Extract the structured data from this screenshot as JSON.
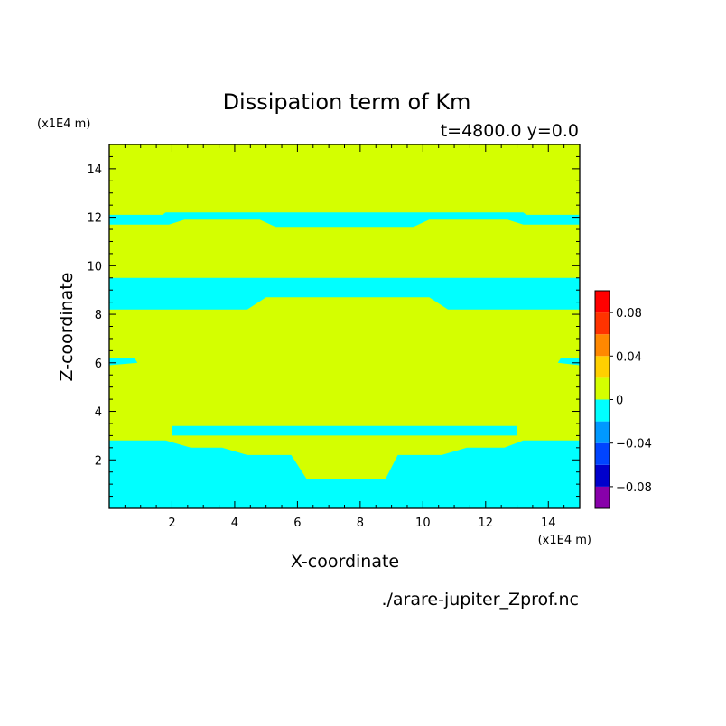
{
  "chart_data": {
    "type": "heatmap",
    "title": "Dissipation term of Km",
    "subtitle": "t=4800.0 y=0.0",
    "xlabel": "X-coordinate",
    "ylabel": "Z-coordinate",
    "x_unit": "(x1E4 m)",
    "y_unit": "(x1E4 m)",
    "xlim": [
      0,
      15
    ],
    "ylim": [
      0,
      15
    ],
    "xticks": [
      2,
      4,
      6,
      8,
      10,
      12,
      14
    ],
    "yticks": [
      2,
      4,
      6,
      8,
      10,
      12,
      14
    ],
    "file_label": "./arare-jupiter_Zprof.nc",
    "background_level": "0 to 0.02",
    "background_color": "#d4ff00",
    "negative_level": "-0.02 to 0",
    "negative_color": "#00ffff",
    "negative_regions": [
      {
        "name": "bottom layer",
        "outline": [
          [
            0,
            0
          ],
          [
            15,
            0
          ],
          [
            15,
            2.8
          ],
          [
            13.2,
            2.8
          ],
          [
            12.6,
            2.5
          ],
          [
            11.4,
            2.5
          ],
          [
            10.6,
            2.2
          ],
          [
            9.2,
            2.2
          ],
          [
            8.8,
            1.2
          ],
          [
            6.3,
            1.2
          ],
          [
            5.8,
            2.2
          ],
          [
            4.4,
            2.2
          ],
          [
            3.6,
            2.5
          ],
          [
            2.6,
            2.5
          ],
          [
            1.8,
            2.8
          ],
          [
            0,
            2.8
          ]
        ]
      },
      {
        "name": "thin band near z=3.2",
        "outline": [
          [
            2.0,
            3.4
          ],
          [
            13.0,
            3.4
          ],
          [
            13.0,
            3.0
          ],
          [
            2.0,
            3.0
          ]
        ]
      },
      {
        "name": "band near z=9",
        "outline": [
          [
            0,
            9.5
          ],
          [
            15,
            9.5
          ],
          [
            15,
            8.2
          ],
          [
            10.8,
            8.2
          ],
          [
            10.2,
            8.7
          ],
          [
            5.0,
            8.7
          ],
          [
            4.4,
            8.2
          ],
          [
            0,
            8.2
          ]
        ]
      },
      {
        "name": "band near z=12",
        "outline": [
          [
            0,
            12.1
          ],
          [
            1.7,
            12.1
          ],
          [
            1.8,
            12.2
          ],
          [
            13.2,
            12.2
          ],
          [
            13.3,
            12.1
          ],
          [
            15,
            12.1
          ],
          [
            15,
            11.7
          ],
          [
            13.2,
            11.7
          ],
          [
            12.7,
            11.9
          ],
          [
            10.2,
            11.9
          ],
          [
            9.7,
            11.6
          ],
          [
            5.3,
            11.6
          ],
          [
            4.8,
            11.9
          ],
          [
            2.4,
            11.9
          ],
          [
            1.9,
            11.7
          ],
          [
            0,
            11.7
          ]
        ]
      },
      {
        "name": "left blob near z=6",
        "outline": [
          [
            0,
            6.2
          ],
          [
            0.8,
            6.2
          ],
          [
            0.9,
            6.0
          ],
          [
            0,
            5.9
          ]
        ]
      },
      {
        "name": "right blob near z=6",
        "outline": [
          [
            15,
            6.2
          ],
          [
            14.4,
            6.2
          ],
          [
            14.3,
            6.0
          ],
          [
            15,
            5.9
          ]
        ]
      }
    ],
    "colorbar": {
      "levels": [
        -0.1,
        -0.08,
        -0.06,
        -0.04,
        -0.02,
        0,
        0.02,
        0.04,
        0.06,
        0.08,
        0.1
      ],
      "colors": [
        "#8800aa",
        "#0000cc",
        "#0044ff",
        "#0099ff",
        "#00ffff",
        "#d4ff00",
        "#ffd000",
        "#ff8800",
        "#ff3300",
        "#ff0000",
        "#ffaaaa"
      ],
      "tick_values": [
        -0.08,
        -0.04,
        0,
        0.04,
        0.08
      ],
      "tick_labels": [
        "−0.08",
        "−0.04",
        "0",
        "0.04",
        "0.08"
      ]
    }
  }
}
